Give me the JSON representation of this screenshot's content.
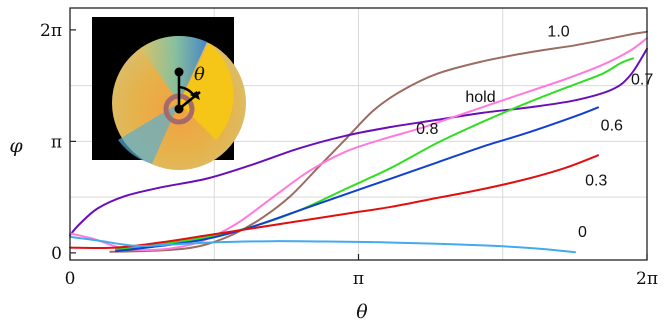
{
  "chart_data": {
    "type": "line",
    "xlabel": "θ",
    "ylabel": "φ",
    "xlim": [
      0,
      6.2832
    ],
    "ylim": [
      -0.2,
      6.9
    ],
    "grid": true,
    "x_ticks": [
      {
        "value": 0,
        "label": "0"
      },
      {
        "value": 3.1416,
        "label": "π"
      },
      {
        "value": 6.2832,
        "label": "2π"
      }
    ],
    "y_ticks": [
      {
        "value": 0,
        "label": "0"
      },
      {
        "value": 3.1416,
        "label": "π"
      },
      {
        "value": 6.2832,
        "label": "2π"
      }
    ],
    "x_gridlines": [
      1.5708,
      3.1416,
      4.7124
    ],
    "y_gridlines": [
      1.5708,
      3.1416,
      4.7124
    ],
    "series": [
      {
        "name": "1.0",
        "color": "#9c6b62",
        "points": [
          [
            0.44,
            0.03
          ],
          [
            0.9,
            0.06
          ],
          [
            1.25,
            0.12
          ],
          [
            1.5,
            0.25
          ],
          [
            1.8,
            0.55
          ],
          [
            2.1,
            1.0
          ],
          [
            2.4,
            1.6
          ],
          [
            2.7,
            2.4
          ],
          [
            3.0,
            3.2
          ],
          [
            3.3,
            4.0
          ],
          [
            3.6,
            4.55
          ],
          [
            4.0,
            5.05
          ],
          [
            4.5,
            5.4
          ],
          [
            5.0,
            5.65
          ],
          [
            5.5,
            5.85
          ],
          [
            5.9,
            6.05
          ],
          [
            6.15,
            6.18
          ],
          [
            6.2832,
            6.23
          ]
        ]
      },
      {
        "name": "hold",
        "color": "#6a0fb8",
        "points": [
          [
            0,
            0.5
          ],
          [
            0.1,
            0.8
          ],
          [
            0.3,
            1.25
          ],
          [
            0.6,
            1.6
          ],
          [
            1.0,
            1.85
          ],
          [
            1.5,
            2.1
          ],
          [
            2.0,
            2.5
          ],
          [
            2.5,
            2.95
          ],
          [
            3.0,
            3.3
          ],
          [
            3.5,
            3.55
          ],
          [
            4.0,
            3.75
          ],
          [
            4.5,
            3.95
          ],
          [
            5.0,
            4.1
          ],
          [
            5.5,
            4.3
          ],
          [
            5.9,
            4.6
          ],
          [
            6.1,
            5.0
          ],
          [
            6.2832,
            5.75
          ]
        ]
      },
      {
        "name": "0.8",
        "color": "#ff7adc",
        "points": [
          [
            0,
            0.55
          ],
          [
            0.25,
            0.4
          ],
          [
            0.6,
            0.12
          ],
          [
            1.0,
            0.1
          ],
          [
            1.4,
            0.3
          ],
          [
            1.8,
            0.8
          ],
          [
            2.2,
            1.55
          ],
          [
            2.6,
            2.3
          ],
          [
            3.0,
            2.85
          ],
          [
            3.4,
            3.2
          ],
          [
            3.8,
            3.5
          ],
          [
            4.2,
            3.85
          ],
          [
            4.6,
            4.2
          ],
          [
            5.0,
            4.55
          ],
          [
            5.4,
            4.9
          ],
          [
            5.8,
            5.3
          ],
          [
            6.1,
            5.7
          ],
          [
            6.2832,
            6.05
          ]
        ]
      },
      {
        "name": "0.7",
        "color": "#33dd22",
        "points": [
          [
            0.5,
            0.1
          ],
          [
            1.0,
            0.25
          ],
          [
            1.5,
            0.45
          ],
          [
            2.0,
            0.75
          ],
          [
            2.5,
            1.2
          ],
          [
            3.0,
            1.8
          ],
          [
            3.5,
            2.4
          ],
          [
            4.0,
            3.1
          ],
          [
            4.5,
            3.7
          ],
          [
            5.0,
            4.25
          ],
          [
            5.5,
            4.75
          ],
          [
            5.8,
            5.05
          ],
          [
            6.0,
            5.35
          ],
          [
            6.13,
            5.48
          ]
        ]
      },
      {
        "name": "0.6",
        "color": "#1040d0",
        "points": [
          [
            0.5,
            0.05
          ],
          [
            1.0,
            0.2
          ],
          [
            1.5,
            0.4
          ],
          [
            2.0,
            0.75
          ],
          [
            2.5,
            1.2
          ],
          [
            3.0,
            1.65
          ],
          [
            3.5,
            2.1
          ],
          [
            4.0,
            2.55
          ],
          [
            4.5,
            3.0
          ],
          [
            5.0,
            3.4
          ],
          [
            5.5,
            3.85
          ],
          [
            5.75,
            4.1
          ]
        ]
      },
      {
        "name": "0.3",
        "color": "#e01010",
        "points": [
          [
            0.0,
            0.15
          ],
          [
            0.5,
            0.15
          ],
          [
            1.0,
            0.3
          ],
          [
            1.5,
            0.5
          ],
          [
            2.0,
            0.7
          ],
          [
            2.5,
            0.9
          ],
          [
            3.0,
            1.1
          ],
          [
            3.5,
            1.3
          ],
          [
            4.0,
            1.55
          ],
          [
            4.5,
            1.8
          ],
          [
            5.0,
            2.1
          ],
          [
            5.4,
            2.4
          ],
          [
            5.75,
            2.75
          ]
        ]
      },
      {
        "name": "0",
        "color": "#44aaee",
        "points": [
          [
            0.0,
            0.45
          ],
          [
            0.3,
            0.35
          ],
          [
            0.7,
            0.2
          ],
          [
            1.0,
            0.22
          ],
          [
            1.6,
            0.3
          ],
          [
            2.2,
            0.33
          ],
          [
            2.8,
            0.32
          ],
          [
            3.4,
            0.3
          ],
          [
            4.0,
            0.26
          ],
          [
            4.6,
            0.2
          ],
          [
            5.1,
            0.12
          ],
          [
            5.5,
            0.02
          ]
        ]
      }
    ],
    "series_labels": [
      {
        "name": "1.0",
        "x": 5.32,
        "y": 6.1
      },
      {
        "name": "hold",
        "x": 4.47,
        "y": 4.25
      },
      {
        "name": "0.8",
        "x": 3.89,
        "y": 3.35
      },
      {
        "name": "0.7",
        "x": 6.23,
        "y": 4.75
      },
      {
        "name": "0.6",
        "x": 5.9,
        "y": 3.45
      },
      {
        "name": "0.3",
        "x": 5.73,
        "y": 1.9
      },
      {
        "name": "0",
        "x": 5.58,
        "y": 0.45
      }
    ],
    "inset": {
      "label": "θ",
      "wedge_color": "#f5c518",
      "background": "#000000"
    }
  }
}
